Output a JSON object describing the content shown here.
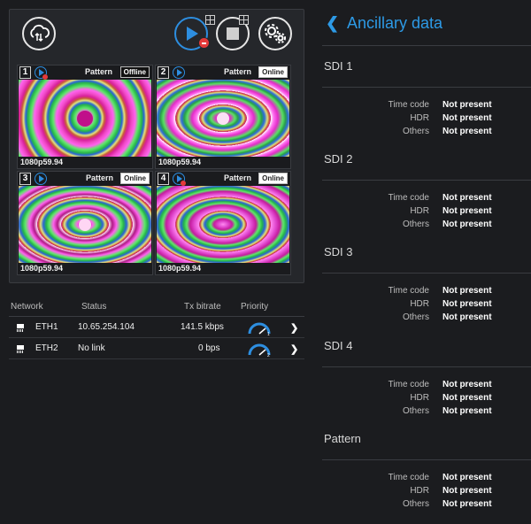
{
  "toolbar": {
    "icons": [
      "cloud-sync-icon",
      "play-icon",
      "stop-icon",
      "settings-icon"
    ]
  },
  "tiles": [
    {
      "number": "1",
      "label": "Pattern",
      "status": "Offline",
      "format": "1080p59.94"
    },
    {
      "number": "2",
      "label": "Pattern",
      "status": "Online",
      "format": "1080p59.94"
    },
    {
      "number": "3",
      "label": "Pattern",
      "status": "Online",
      "format": "1080p59.94"
    },
    {
      "number": "4",
      "label": "Pattern",
      "status": "Online",
      "format": "1080p59.94"
    }
  ],
  "network": {
    "headers": {
      "network": "Network",
      "status": "Status",
      "bitrate": "Tx bitrate",
      "priority": "Priority"
    },
    "rows": [
      {
        "name": "ETH1",
        "status": "10.65.254.104",
        "bitrate": "141.5 kbps"
      },
      {
        "name": "ETH2",
        "status": "No link",
        "bitrate": "0 bps"
      }
    ]
  },
  "ancillary": {
    "title": "Ancillary data",
    "sections": [
      {
        "name": "SDI 1",
        "rows": [
          {
            "key": "Time code",
            "value": "Not present"
          },
          {
            "key": "HDR",
            "value": "Not present"
          },
          {
            "key": "Others",
            "value": "Not present"
          }
        ]
      },
      {
        "name": "SDI 2",
        "rows": [
          {
            "key": "Time code",
            "value": "Not present"
          },
          {
            "key": "HDR",
            "value": "Not present"
          },
          {
            "key": "Others",
            "value": "Not present"
          }
        ]
      },
      {
        "name": "SDI 3",
        "rows": [
          {
            "key": "Time code",
            "value": "Not present"
          },
          {
            "key": "HDR",
            "value": "Not present"
          },
          {
            "key": "Others",
            "value": "Not present"
          }
        ]
      },
      {
        "name": "SDI 4",
        "rows": [
          {
            "key": "Time code",
            "value": "Not present"
          },
          {
            "key": "HDR",
            "value": "Not present"
          },
          {
            "key": "Others",
            "value": "Not present"
          }
        ]
      },
      {
        "name": "Pattern",
        "rows": [
          {
            "key": "Time code",
            "value": "Not present"
          },
          {
            "key": "HDR",
            "value": "Not present"
          },
          {
            "key": "Others",
            "value": "Not present"
          }
        ]
      }
    ]
  },
  "colors": {
    "accent": "#2d9ae6",
    "background": "#1b1c1f",
    "alert": "#e53a3a"
  }
}
